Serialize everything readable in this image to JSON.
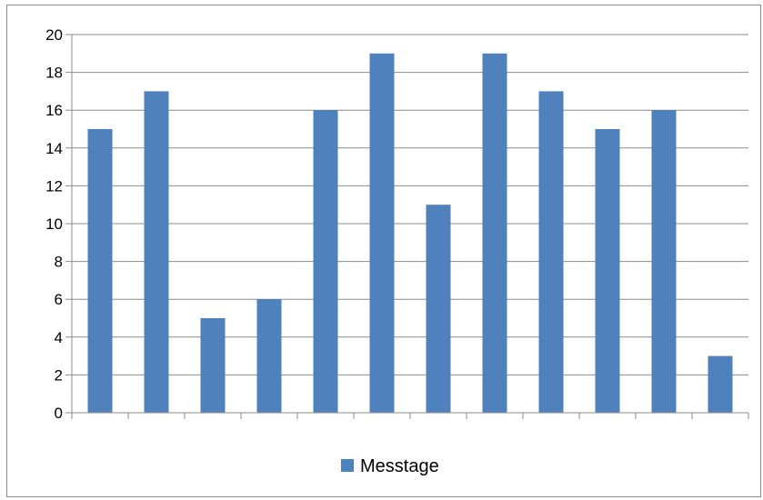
{
  "chart_data": {
    "type": "bar",
    "categories": [
      "",
      "",
      "",
      "",
      "",
      "",
      "",
      "",
      "",
      "",
      "",
      ""
    ],
    "series": [
      {
        "name": "Messtage",
        "color": "#4F81BD",
        "values": [
          15,
          17,
          5,
          6,
          16,
          19,
          11,
          19,
          17,
          15,
          16,
          3
        ]
      }
    ],
    "ylim": [
      0,
      20
    ],
    "yticks": [
      "0",
      "2",
      "4",
      "6",
      "8",
      "10",
      "12",
      "14",
      "16",
      "18",
      "20"
    ],
    "title": "",
    "xlabel": "",
    "ylabel": "",
    "grid": "horizontal",
    "legend": "bottom"
  }
}
